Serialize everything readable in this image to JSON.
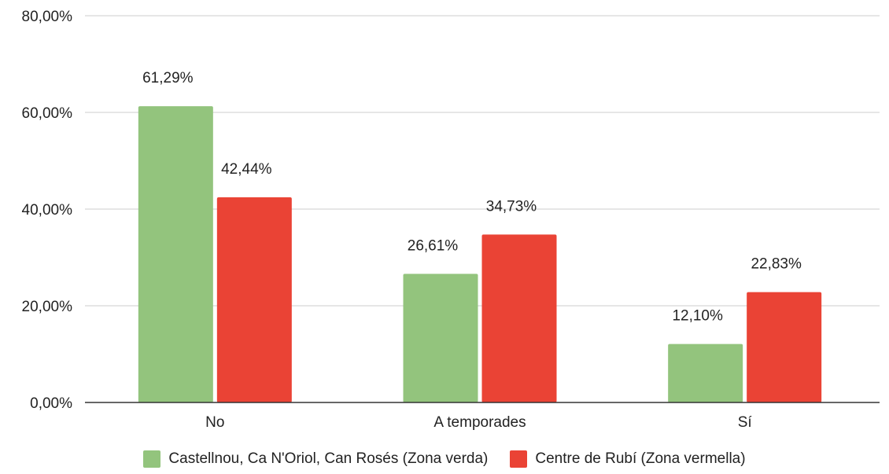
{
  "chart_data": {
    "type": "bar",
    "categories": [
      "No",
      "A temporades",
      "Sí"
    ],
    "series": [
      {
        "name": "Castellnou, Ca N'Oriol, Can Rosés (Zona verda)",
        "color": "#93c47d",
        "values": [
          61.29,
          26.61,
          12.1
        ],
        "labels": [
          "61,29%",
          "26,61%",
          "12,10%"
        ]
      },
      {
        "name": "Centre de Rubí (Zona vermella)",
        "color": "#ea4335",
        "values": [
          42.44,
          34.73,
          22.83
        ],
        "labels": [
          "42,44%",
          "34,73%",
          "22,83%"
        ]
      }
    ],
    "ylim": [
      0,
      80
    ],
    "yticks": [
      0,
      20,
      40,
      60,
      80
    ],
    "ytick_labels": [
      "0,00%",
      "20,00%",
      "40,00%",
      "60,00%",
      "80,00%"
    ],
    "grid": true,
    "legend_position": "bottom",
    "title": "",
    "xlabel": "",
    "ylabel": ""
  }
}
